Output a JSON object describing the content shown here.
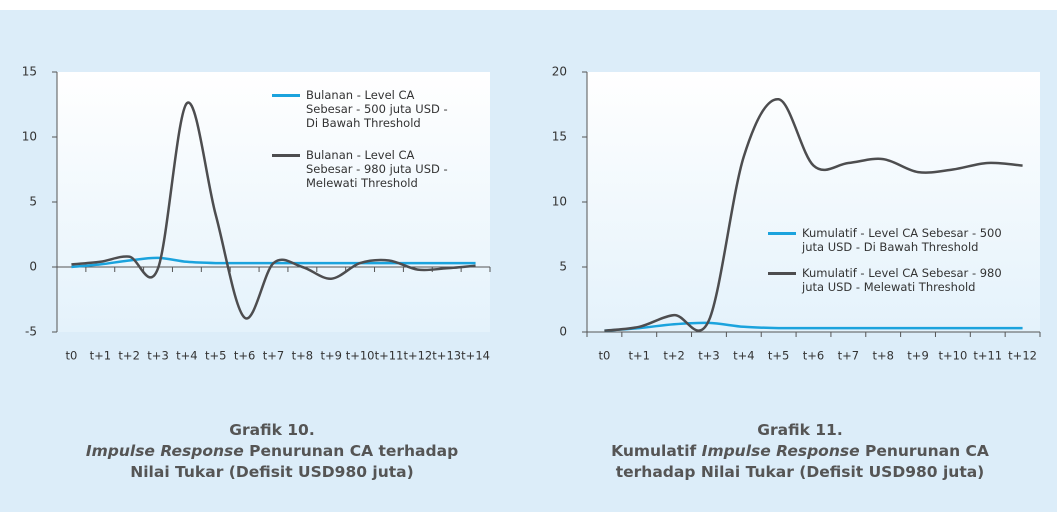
{
  "chart_data": [
    {
      "type": "line",
      "caption_label": "Grafik 10.",
      "caption": [
        {
          "text": "Impulse Response",
          "italic": true
        },
        {
          "text": " Penurunan CA terhadap Nilai Tukar (Defisit USD980 juta)",
          "italic": false
        }
      ],
      "categories": [
        "t0",
        "t+1",
        "t+2",
        "t+3",
        "t+4",
        "t+5",
        "t+6",
        "t+7",
        "t+8",
        "t+9",
        "t+10",
        "t+11",
        "t+12",
        "t+13",
        "t+14"
      ],
      "series": [
        {
          "name": "Bulanan - Level CA Sebesar - 500 juta USD - Di Bawah Threshold",
          "color": "#1ba3dd",
          "values": [
            0.0,
            0.2,
            0.5,
            0.7,
            0.4,
            0.3,
            0.3,
            0.3,
            0.3,
            0.3,
            0.3,
            0.3,
            0.3,
            0.3,
            0.3
          ]
        },
        {
          "name": "Bulanan - Level CA Sebesar - 980 juta USD - Melewati Threshold",
          "color": "#4d4d4f",
          "values": [
            0.2,
            0.4,
            0.8,
            -0.1,
            12.6,
            4.0,
            -3.9,
            0.3,
            0.0,
            -0.9,
            0.3,
            0.5,
            -0.2,
            -0.1,
            0.1
          ]
        }
      ],
      "ylim": [
        -5,
        15
      ],
      "yticks": [
        -5,
        0,
        5,
        10,
        15
      ]
    },
    {
      "type": "line",
      "caption_label": "Grafik 11.",
      "caption": [
        {
          "text": "Kumulatif ",
          "italic": false
        },
        {
          "text": "Impulse Response",
          "italic": true
        },
        {
          "text": " Penurunan CA terhadap Nilai Tukar (Defisit USD980 juta)",
          "italic": false
        }
      ],
      "categories": [
        "t0",
        "t+1",
        "t+2",
        "t+3",
        "t+4",
        "t+5",
        "t+6",
        "t+7",
        "t+8",
        "t+9",
        "t+10",
        "t+11",
        "t+12"
      ],
      "series": [
        {
          "name": "Kumulatif - Level CA Sebesar - 500 juta USD - Di Bawah Threshold",
          "color": "#1ba3dd",
          "values": [
            0.1,
            0.3,
            0.6,
            0.7,
            0.4,
            0.3,
            0.3,
            0.3,
            0.3,
            0.3,
            0.3,
            0.3,
            0.3
          ]
        },
        {
          "name": "Kumulatif - Level CA Sebesar - 980 juta USD - Melewati Threshold",
          "color": "#4d4d4f",
          "values": [
            0.1,
            0.4,
            1.3,
            0.9,
            13.5,
            17.9,
            12.8,
            13.0,
            13.3,
            12.3,
            12.5,
            13.0,
            12.8
          ]
        }
      ],
      "ylim": [
        0,
        20
      ],
      "yticks": [
        0,
        5,
        10,
        15,
        20
      ]
    }
  ]
}
